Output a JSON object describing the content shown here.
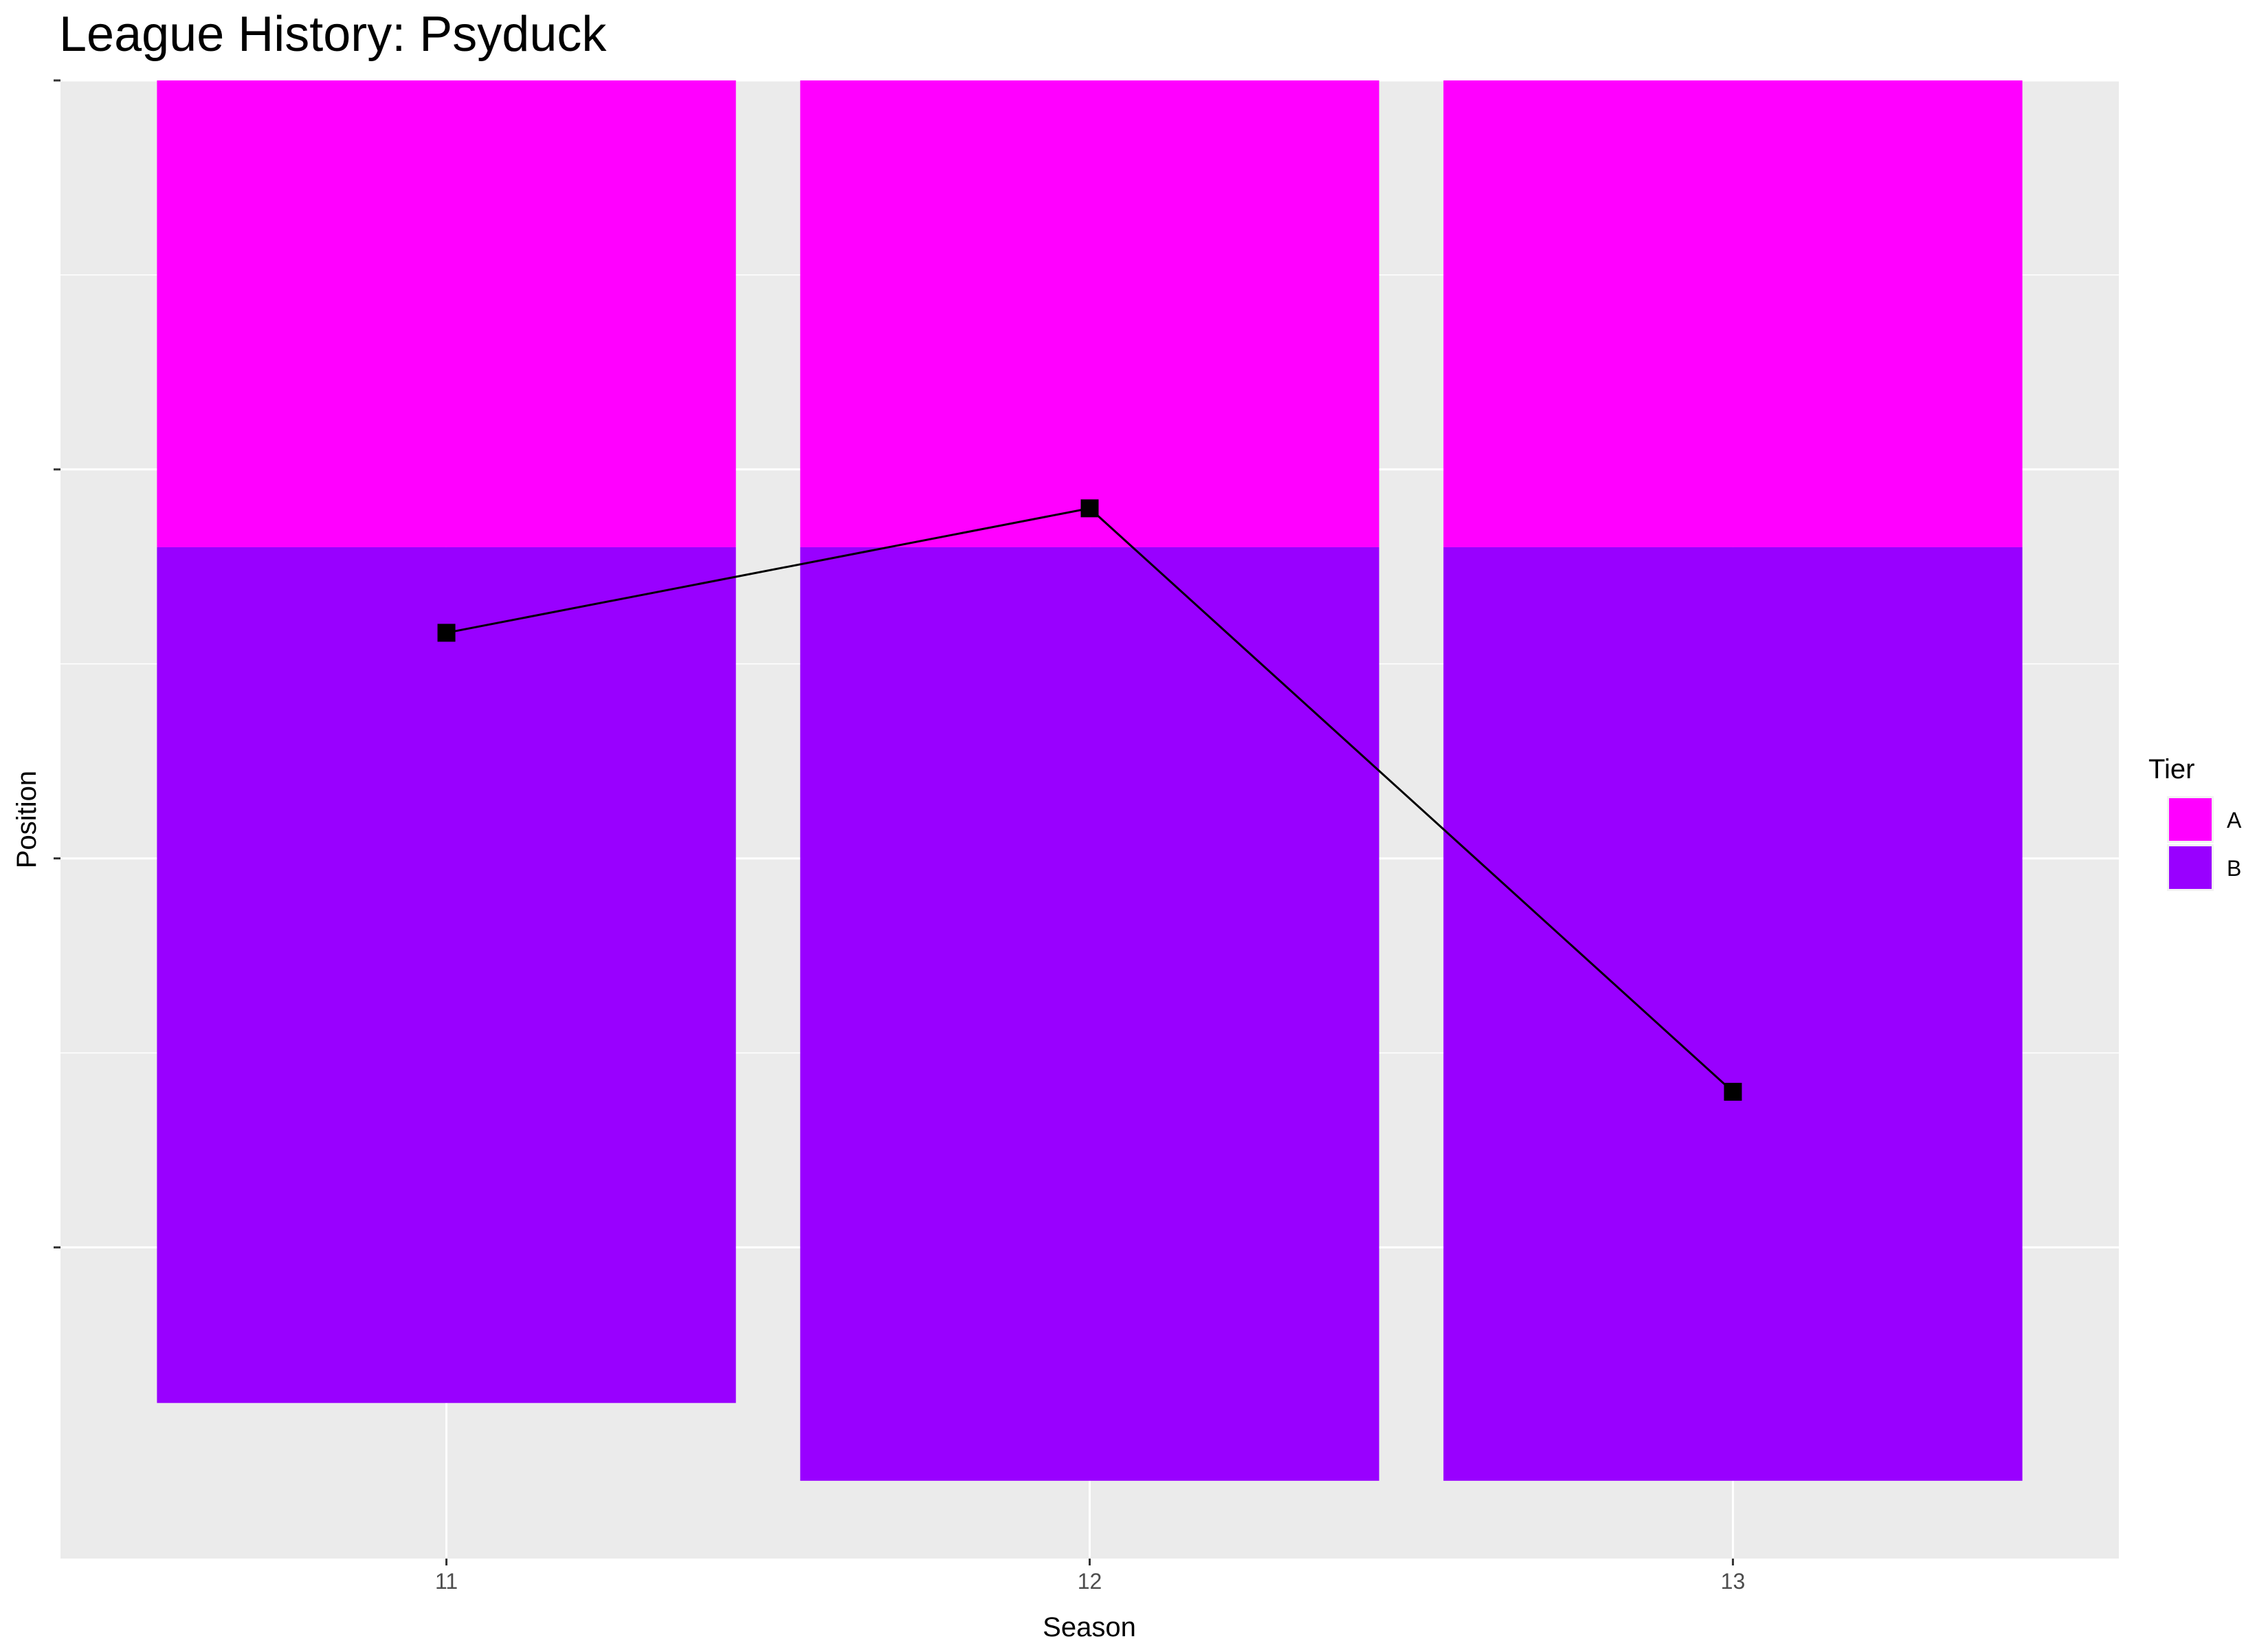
{
  "chart_data": {
    "type": "bar",
    "title": "League History: Psyduck",
    "xlabel": "Season",
    "ylabel": "Position",
    "categories": [
      "11",
      "12",
      "13"
    ],
    "y_tick_labels": false,
    "ylim": [
      40,
      2
    ],
    "grid": true,
    "legend": {
      "title": "Tier",
      "placement": "right",
      "entries": [
        {
          "name": "A",
          "color": "#FF00FF"
        },
        {
          "name": "B",
          "color": "#9900FF"
        }
      ]
    },
    "bars": [
      {
        "season": "11",
        "segments": [
          {
            "tier": "A",
            "from": 2,
            "to": 14
          },
          {
            "tier": "B",
            "from": 14,
            "to": 36
          }
        ]
      },
      {
        "season": "12",
        "segments": [
          {
            "tier": "A",
            "from": 2,
            "to": 14
          },
          {
            "tier": "B",
            "from": 14,
            "to": 38
          }
        ]
      },
      {
        "season": "13",
        "segments": [
          {
            "tier": "A",
            "from": 2,
            "to": 14
          },
          {
            "tier": "B",
            "from": 14,
            "to": 38
          }
        ]
      }
    ],
    "line": {
      "color": "#000000",
      "points": [
        {
          "season": "11",
          "position": 16.2
        },
        {
          "season": "12",
          "position": 13
        },
        {
          "season": "13",
          "position": 28
        }
      ]
    }
  }
}
